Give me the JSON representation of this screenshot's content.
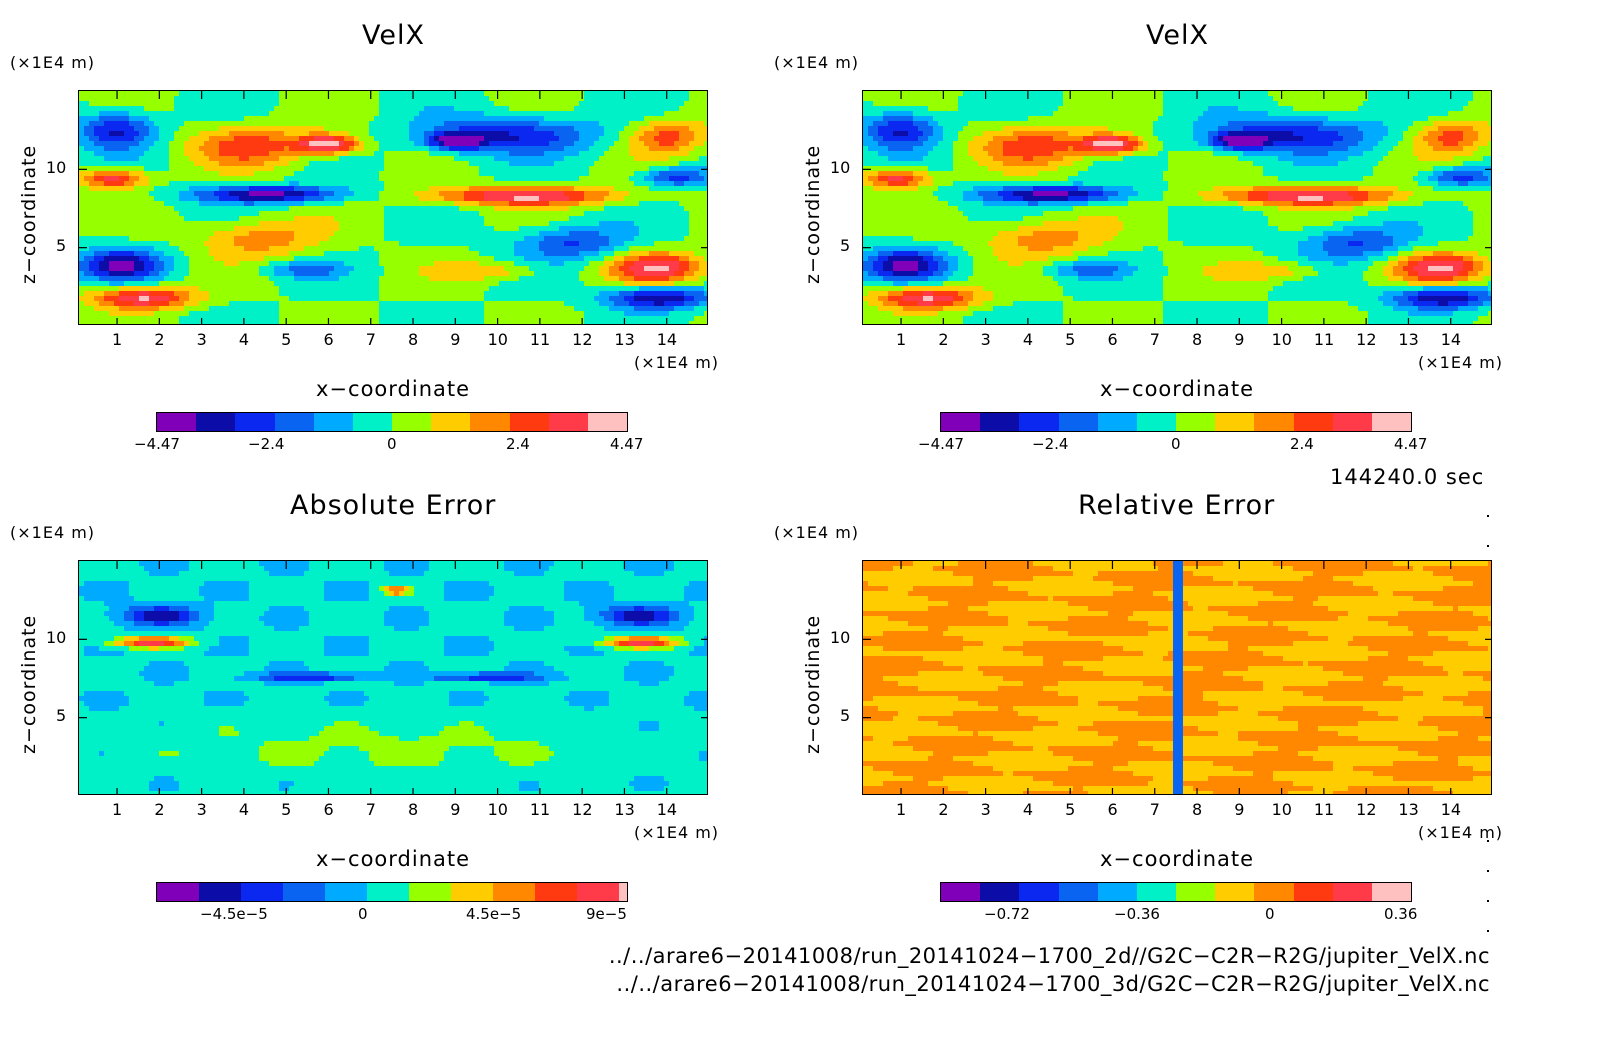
{
  "chart_data": [
    {
      "type": "heatmap",
      "title": "VelX",
      "ylabel": "z−coordinate",
      "xlabel": "x−coordinate",
      "yunit": "(×1E4 m)",
      "xunit": "(×1E4 m)",
      "xticks": [
        "1",
        "2",
        "3",
        "4",
        "5",
        "6",
        "7",
        "8",
        "9",
        "10",
        "11",
        "12",
        "13",
        "14"
      ],
      "yticks": [
        "5",
        "10"
      ],
      "xlim": [
        0.1,
        15.0
      ],
      "ylim": [
        0.0,
        15.0
      ],
      "colorbar": {
        "labels": [
          "−4.47",
          "−2.4",
          "0",
          "2.4",
          "4.47"
        ],
        "range": [
          -4.47,
          4.47
        ]
      }
    },
    {
      "type": "heatmap",
      "title": "VelX",
      "ylabel": "z−coordinate",
      "xlabel": "x−coordinate",
      "yunit": "(×1E4 m)",
      "xunit": "(×1E4 m)",
      "xticks": [
        "1",
        "2",
        "3",
        "4",
        "5",
        "6",
        "7",
        "8",
        "9",
        "10",
        "11",
        "12",
        "13",
        "14"
      ],
      "yticks": [
        "5",
        "10"
      ],
      "xlim": [
        0.1,
        15.0
      ],
      "ylim": [
        0.0,
        15.0
      ],
      "colorbar": {
        "labels": [
          "−4.47",
          "−2.4",
          "0",
          "2.4",
          "4.47"
        ],
        "range": [
          -4.47,
          4.47
        ]
      }
    },
    {
      "type": "heatmap",
      "title": "Absolute Error",
      "ylabel": "z−coordinate",
      "xlabel": "x−coordinate",
      "yunit": "(×1E4 m)",
      "xunit": "(×1E4 m)",
      "xticks": [
        "1",
        "2",
        "3",
        "4",
        "5",
        "6",
        "7",
        "8",
        "9",
        "10",
        "11",
        "12",
        "13",
        "14"
      ],
      "yticks": [
        "5",
        "10"
      ],
      "xlim": [
        0.1,
        15.0
      ],
      "ylim": [
        0.0,
        15.0
      ],
      "colorbar": {
        "labels": [
          "−4.5e−5",
          "0",
          "4.5e−5",
          "9e−5"
        ]
      }
    },
    {
      "type": "heatmap",
      "title": "Relative Error",
      "ylabel": "z−coordinate",
      "xlabel": "x−coordinate",
      "yunit": "(×1E4 m)",
      "xunit": "(×1E4 m)",
      "xticks": [
        "1",
        "2",
        "3",
        "4",
        "5",
        "6",
        "7",
        "8",
        "9",
        "10",
        "11",
        "12",
        "13",
        "14"
      ],
      "yticks": [
        "5",
        "10"
      ],
      "xlim": [
        0.1,
        15.0
      ],
      "ylim": [
        0.0,
        15.0
      ],
      "colorbar": {
        "labels": [
          "−0.72",
          "−0.36",
          "0",
          "0.36"
        ]
      }
    }
  ],
  "colormap": [
    "#7f00b8",
    "#0c0ca8",
    "#0a28f0",
    "#0a64f2",
    "#00aaff",
    "#00f0c8",
    "#96ff00",
    "#ffcc00",
    "#ff8800",
    "#ff3a10",
    "#ff3b4a",
    "#ffc0c0"
  ],
  "timestamp": "144240.0 sec",
  "files": [
    "../../arare6−20141008/run_20141024−1700_2d//G2C−C2R−R2G/jupiter_VelX.nc",
    "../../arare6−20141008/run_20141024−1700_3d/G2C−C2R−R2G/jupiter_VelX.nc"
  ]
}
